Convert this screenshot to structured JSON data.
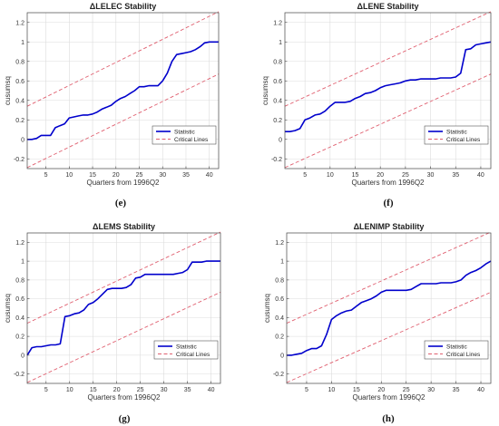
{
  "chart_data": [
    {
      "type": "line",
      "title": "ΔLELEC Stability",
      "xlabel": "Quarters from 1996Q2",
      "ylabel": "cusumsq",
      "caption": "(e)",
      "xlim": [
        1,
        42
      ],
      "ylim": [
        -0.3,
        1.3
      ],
      "xticks": [
        "5",
        "10",
        "15",
        "20",
        "25",
        "30",
        "35",
        "40"
      ],
      "yticks": [
        "-0.2",
        "0",
        "0.2",
        "0.4",
        "0.6",
        "0.8",
        "1",
        "1.2"
      ],
      "grid": true,
      "legend_position": "lower-right",
      "legend": [
        "Statistic",
        "Critical Lines"
      ],
      "series": [
        {
          "name": "Statistic",
          "color": "#0000cc",
          "x": [
            1,
            2,
            3,
            4,
            5,
            6,
            7,
            8,
            9,
            10,
            11,
            12,
            13,
            14,
            15,
            16,
            17,
            18,
            19,
            20,
            21,
            22,
            23,
            24,
            25,
            26,
            27,
            28,
            29,
            30,
            31,
            32,
            33,
            34,
            35,
            36,
            37,
            38,
            39,
            40,
            41,
            42
          ],
          "y": [
            0.0,
            0.0,
            0.01,
            0.04,
            0.04,
            0.04,
            0.12,
            0.14,
            0.16,
            0.22,
            0.23,
            0.24,
            0.25,
            0.25,
            0.26,
            0.28,
            0.31,
            0.33,
            0.35,
            0.39,
            0.42,
            0.44,
            0.47,
            0.5,
            0.54,
            0.54,
            0.55,
            0.55,
            0.55,
            0.6,
            0.68,
            0.8,
            0.87,
            0.88,
            0.89,
            0.9,
            0.92,
            0.95,
            0.99,
            1.0,
            1.0,
            1.0
          ]
        },
        {
          "name": "Critical Lines",
          "color": "#e06070",
          "x": [
            1,
            42
          ],
          "y": [
            0.34,
            1.31
          ]
        },
        {
          "name": "",
          "color": "#e06070",
          "x": [
            1,
            42
          ],
          "y": [
            -0.29,
            0.67
          ]
        }
      ]
    },
    {
      "type": "line",
      "title": "ΔLENE Stability",
      "xlabel": "Quarters from 1996Q2",
      "ylabel": "cusumsq",
      "caption": "(f)",
      "xlim": [
        1,
        42
      ],
      "ylim": [
        -0.3,
        1.3
      ],
      "xticks": [
        "5",
        "10",
        "15",
        "20",
        "25",
        "30",
        "35",
        "40"
      ],
      "yticks": [
        "-0.2",
        "0",
        "0.2",
        "0.4",
        "0.6",
        "0.8",
        "1",
        "1.2"
      ],
      "grid": true,
      "legend_position": "lower-right",
      "legend": [
        "Statistic",
        "Critical Lines"
      ],
      "series": [
        {
          "name": "Statistic",
          "color": "#0000cc",
          "x": [
            1,
            2,
            3,
            4,
            5,
            6,
            7,
            8,
            9,
            10,
            11,
            12,
            13,
            14,
            15,
            16,
            17,
            18,
            19,
            20,
            21,
            22,
            23,
            24,
            25,
            26,
            27,
            28,
            29,
            30,
            31,
            32,
            33,
            34,
            35,
            36,
            37,
            38,
            39,
            40,
            41,
            42
          ],
          "y": [
            0.08,
            0.08,
            0.09,
            0.11,
            0.2,
            0.22,
            0.25,
            0.26,
            0.29,
            0.34,
            0.38,
            0.38,
            0.38,
            0.39,
            0.42,
            0.44,
            0.47,
            0.48,
            0.5,
            0.53,
            0.55,
            0.56,
            0.57,
            0.58,
            0.6,
            0.61,
            0.61,
            0.62,
            0.62,
            0.62,
            0.62,
            0.63,
            0.63,
            0.63,
            0.64,
            0.68,
            0.92,
            0.93,
            0.97,
            0.98,
            0.99,
            1.0
          ]
        },
        {
          "name": "Critical Lines",
          "color": "#e06070",
          "x": [
            1,
            42
          ],
          "y": [
            0.34,
            1.31
          ]
        },
        {
          "name": "",
          "color": "#e06070",
          "x": [
            1,
            42
          ],
          "y": [
            -0.29,
            0.67
          ]
        }
      ]
    },
    {
      "type": "line",
      "title": "ΔLEMS Stability",
      "xlabel": "Quarters from 1996Q2",
      "ylabel": "cusumsq",
      "caption": "(g)",
      "xlim": [
        1,
        42
      ],
      "ylim": [
        -0.3,
        1.3
      ],
      "xticks": [
        "5",
        "10",
        "15",
        "20",
        "25",
        "30",
        "35",
        "40"
      ],
      "yticks": [
        "-0.2",
        "0",
        "0.2",
        "0.4",
        "0.6",
        "0.8",
        "1",
        "1.2"
      ],
      "grid": true,
      "legend_position": "lower-right",
      "legend": [
        "Statistic",
        "Critical Lines"
      ],
      "series": [
        {
          "name": "Statistic",
          "color": "#0000cc",
          "x": [
            1,
            2,
            3,
            4,
            5,
            6,
            7,
            8,
            9,
            10,
            11,
            12,
            13,
            14,
            15,
            16,
            17,
            18,
            19,
            20,
            21,
            22,
            23,
            24,
            25,
            26,
            27,
            28,
            29,
            30,
            31,
            32,
            33,
            34,
            35,
            36,
            37,
            38,
            39,
            40,
            41,
            42
          ],
          "y": [
            0.0,
            0.08,
            0.09,
            0.09,
            0.1,
            0.11,
            0.11,
            0.12,
            0.41,
            0.42,
            0.44,
            0.45,
            0.48,
            0.54,
            0.56,
            0.6,
            0.65,
            0.7,
            0.71,
            0.71,
            0.71,
            0.72,
            0.75,
            0.82,
            0.83,
            0.86,
            0.86,
            0.86,
            0.86,
            0.86,
            0.86,
            0.86,
            0.87,
            0.88,
            0.91,
            0.99,
            0.99,
            0.99,
            1.0,
            1.0,
            1.0,
            1.0
          ]
        },
        {
          "name": "Critical Lines",
          "color": "#e06070",
          "x": [
            1,
            42
          ],
          "y": [
            0.34,
            1.31
          ]
        },
        {
          "name": "",
          "color": "#e06070",
          "x": [
            1,
            42
          ],
          "y": [
            -0.29,
            0.67
          ]
        }
      ]
    },
    {
      "type": "line",
      "title": "ΔLENIMP Stability",
      "xlabel": "Quarters from 1996Q2",
      "ylabel": "cusumsq",
      "caption": "(h)",
      "xlim": [
        1,
        42
      ],
      "ylim": [
        -0.3,
        1.3
      ],
      "xticks": [
        "5",
        "10",
        "15",
        "20",
        "25",
        "30",
        "35",
        "40"
      ],
      "yticks": [
        "-0.2",
        "0",
        "0.2",
        "0.4",
        "0.6",
        "0.8",
        "1",
        "1.2"
      ],
      "grid": true,
      "legend_position": "lower-right",
      "legend": [
        "Statistic",
        "Critical Lines"
      ],
      "series": [
        {
          "name": "Statistic",
          "color": "#0000cc",
          "x": [
            1,
            2,
            3,
            4,
            5,
            6,
            7,
            8,
            9,
            10,
            11,
            12,
            13,
            14,
            15,
            16,
            17,
            18,
            19,
            20,
            21,
            22,
            23,
            24,
            25,
            26,
            27,
            28,
            29,
            30,
            31,
            32,
            33,
            34,
            35,
            36,
            37,
            38,
            39,
            40,
            41,
            42
          ],
          "y": [
            0.0,
            0.0,
            0.01,
            0.02,
            0.05,
            0.07,
            0.07,
            0.1,
            0.22,
            0.38,
            0.42,
            0.45,
            0.47,
            0.48,
            0.52,
            0.56,
            0.58,
            0.6,
            0.63,
            0.67,
            0.69,
            0.69,
            0.69,
            0.69,
            0.69,
            0.7,
            0.73,
            0.76,
            0.76,
            0.76,
            0.76,
            0.77,
            0.77,
            0.77,
            0.78,
            0.8,
            0.85,
            0.88,
            0.9,
            0.93,
            0.97,
            1.0
          ]
        },
        {
          "name": "Critical Lines",
          "color": "#e06070",
          "x": [
            1,
            42
          ],
          "y": [
            0.34,
            1.31
          ]
        },
        {
          "name": "",
          "color": "#e06070",
          "x": [
            1,
            42
          ],
          "y": [
            -0.29,
            0.67
          ]
        }
      ]
    }
  ]
}
